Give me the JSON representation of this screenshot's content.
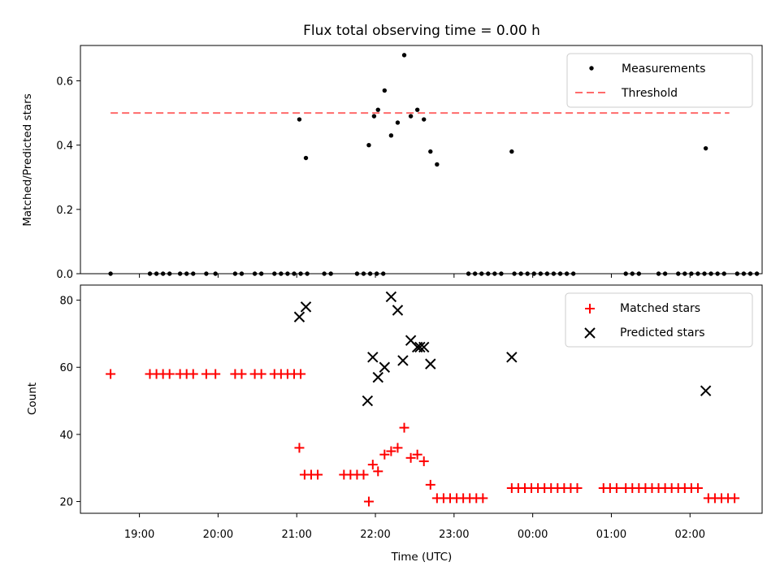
{
  "chart_data": [
    {
      "type": "scatter",
      "title": "Flux total observing time = 0.00 h",
      "ylabel": "Matched/Predicted stars",
      "xlabel": "",
      "ylim": [
        0,
        0.71
      ],
      "yticks": [
        "0.0",
        "0.2",
        "0.4",
        "0.6"
      ],
      "ytick_values": [
        0,
        0.2,
        0.4,
        0.6
      ],
      "legend_position": "upper right",
      "legend": [
        "Measurements",
        "Threshold"
      ],
      "threshold": {
        "name": "Threshold",
        "value": 0.5,
        "x_start": "18:38",
        "x_end": "02:30",
        "color": "#ff6b6b",
        "style": "dashed"
      },
      "series": [
        {
          "name": "Measurements",
          "marker": "dot",
          "color": "#000000",
          "points": [
            [
              "18:38",
              0
            ],
            [
              "19:08",
              0
            ],
            [
              "19:13",
              0
            ],
            [
              "19:18",
              0
            ],
            [
              "19:23",
              0
            ],
            [
              "19:31",
              0
            ],
            [
              "19:36",
              0
            ],
            [
              "19:41",
              0
            ],
            [
              "19:51",
              0
            ],
            [
              "19:58",
              0
            ],
            [
              "20:13",
              0
            ],
            [
              "20:18",
              0
            ],
            [
              "20:28",
              0
            ],
            [
              "20:33",
              0
            ],
            [
              "20:43",
              0
            ],
            [
              "20:48",
              0
            ],
            [
              "20:53",
              0
            ],
            [
              "20:58",
              0
            ],
            [
              "21:03",
              0
            ],
            [
              "21:08",
              0
            ],
            [
              "21:21",
              0
            ],
            [
              "21:26",
              0
            ],
            [
              "21:46",
              0
            ],
            [
              "21:51",
              0
            ],
            [
              "21:56",
              0
            ],
            [
              "22:01",
              0
            ],
            [
              "22:06",
              0
            ],
            [
              "23:11",
              0
            ],
            [
              "23:16",
              0
            ],
            [
              "23:21",
              0
            ],
            [
              "23:26",
              0
            ],
            [
              "23:31",
              0
            ],
            [
              "23:36",
              0
            ],
            [
              "23:46",
              0
            ],
            [
              "23:51",
              0
            ],
            [
              "23:56",
              0
            ],
            [
              "00:01",
              0
            ],
            [
              "00:06",
              0
            ],
            [
              "00:11",
              0
            ],
            [
              "00:16",
              0
            ],
            [
              "00:21",
              0
            ],
            [
              "00:26",
              0
            ],
            [
              "00:31",
              0
            ],
            [
              "01:11",
              0
            ],
            [
              "01:16",
              0
            ],
            [
              "01:21",
              0
            ],
            [
              "01:36",
              0
            ],
            [
              "01:41",
              0
            ],
            [
              "01:51",
              0
            ],
            [
              "01:56",
              0
            ],
            [
              "02:01",
              0
            ],
            [
              "02:06",
              0
            ],
            [
              "02:11",
              0
            ],
            [
              "02:16",
              0
            ],
            [
              "02:21",
              0
            ],
            [
              "02:26",
              0
            ],
            [
              "02:36",
              0
            ],
            [
              "02:41",
              0
            ],
            [
              "02:46",
              0
            ],
            [
              "02:51",
              0
            ],
            [
              "21:02",
              0.48
            ],
            [
              "21:07",
              0.36
            ],
            [
              "21:55",
              0.4
            ],
            [
              "21:59",
              0.49
            ],
            [
              "22:02",
              0.51
            ],
            [
              "22:07",
              0.57
            ],
            [
              "22:12",
              0.43
            ],
            [
              "22:17",
              0.47
            ],
            [
              "22:22",
              0.68
            ],
            [
              "22:27",
              0.49
            ],
            [
              "22:32",
              0.51
            ],
            [
              "22:37",
              0.48
            ],
            [
              "22:42",
              0.38
            ],
            [
              "22:47",
              0.34
            ],
            [
              "23:44",
              0.38
            ],
            [
              "02:12",
              0.39
            ]
          ]
        }
      ]
    },
    {
      "type": "scatter",
      "title": "",
      "xlabel": "Time (UTC)",
      "ylabel": "Count",
      "ylim": [
        16.5,
        84.5
      ],
      "yticks": [
        "20",
        "40",
        "60",
        "80"
      ],
      "ytick_values": [
        20,
        40,
        60,
        80
      ],
      "xticks": [
        "19:00",
        "20:00",
        "21:00",
        "22:00",
        "23:00",
        "00:00",
        "01:00",
        "02:00"
      ],
      "legend_position": "upper right",
      "legend": [
        "Matched stars",
        "Predicted stars"
      ],
      "series": [
        {
          "name": "Matched stars",
          "marker": "plus",
          "color": "#ff0000",
          "points": [
            [
              "18:38",
              58
            ],
            [
              "19:08",
              58
            ],
            [
              "19:13",
              58
            ],
            [
              "19:18",
              58
            ],
            [
              "19:23",
              58
            ],
            [
              "19:31",
              58
            ],
            [
              "19:36",
              58
            ],
            [
              "19:41",
              58
            ],
            [
              "19:51",
              58
            ],
            [
              "19:58",
              58
            ],
            [
              "20:13",
              58
            ],
            [
              "20:18",
              58
            ],
            [
              "20:28",
              58
            ],
            [
              "20:33",
              58
            ],
            [
              "20:43",
              58
            ],
            [
              "20:48",
              58
            ],
            [
              "20:53",
              58
            ],
            [
              "20:58",
              58
            ],
            [
              "21:03",
              58
            ],
            [
              "21:02",
              36
            ],
            [
              "21:06",
              28
            ],
            [
              "21:11",
              28
            ],
            [
              "21:16",
              28
            ],
            [
              "21:36",
              28
            ],
            [
              "21:41",
              28
            ],
            [
              "21:46",
              28
            ],
            [
              "21:51",
              28
            ],
            [
              "21:55",
              20
            ],
            [
              "21:58",
              31
            ],
            [
              "22:02",
              29
            ],
            [
              "22:07",
              34
            ],
            [
              "22:12",
              35
            ],
            [
              "22:17",
              36
            ],
            [
              "22:22",
              42
            ],
            [
              "22:27",
              33
            ],
            [
              "22:32",
              34
            ],
            [
              "22:37",
              32
            ],
            [
              "22:42",
              25
            ],
            [
              "22:47",
              21
            ],
            [
              "22:52",
              21
            ],
            [
              "22:57",
              21
            ],
            [
              "23:02",
              21
            ],
            [
              "23:07",
              21
            ],
            [
              "23:12",
              21
            ],
            [
              "23:17",
              21
            ],
            [
              "23:22",
              21
            ],
            [
              "23:44",
              24
            ],
            [
              "23:49",
              24
            ],
            [
              "23:54",
              24
            ],
            [
              "23:59",
              24
            ],
            [
              "00:04",
              24
            ],
            [
              "00:09",
              24
            ],
            [
              "00:14",
              24
            ],
            [
              "00:19",
              24
            ],
            [
              "00:24",
              24
            ],
            [
              "00:29",
              24
            ],
            [
              "00:34",
              24
            ],
            [
              "00:54",
              24
            ],
            [
              "00:59",
              24
            ],
            [
              "01:04",
              24
            ],
            [
              "01:11",
              24
            ],
            [
              "01:16",
              24
            ],
            [
              "01:21",
              24
            ],
            [
              "01:26",
              24
            ],
            [
              "01:31",
              24
            ],
            [
              "01:36",
              24
            ],
            [
              "01:41",
              24
            ],
            [
              "01:46",
              24
            ],
            [
              "01:51",
              24
            ],
            [
              "01:56",
              24
            ],
            [
              "02:01",
              24
            ],
            [
              "02:06",
              24
            ],
            [
              "02:14",
              21
            ],
            [
              "02:19",
              21
            ],
            [
              "02:24",
              21
            ],
            [
              "02:29",
              21
            ],
            [
              "02:34",
              21
            ]
          ]
        },
        {
          "name": "Predicted stars",
          "marker": "x",
          "color": "#000000",
          "points": [
            [
              "21:02",
              75
            ],
            [
              "21:07",
              78
            ],
            [
              "21:54",
              50
            ],
            [
              "21:58",
              63
            ],
            [
              "22:02",
              57
            ],
            [
              "22:07",
              60
            ],
            [
              "22:12",
              81
            ],
            [
              "22:17",
              77
            ],
            [
              "22:21",
              62
            ],
            [
              "22:27",
              68
            ],
            [
              "22:32",
              66
            ],
            [
              "22:34",
              66
            ],
            [
              "22:37",
              66
            ],
            [
              "22:42",
              61
            ],
            [
              "23:44",
              63
            ],
            [
              "02:12",
              53
            ]
          ]
        }
      ]
    }
  ]
}
